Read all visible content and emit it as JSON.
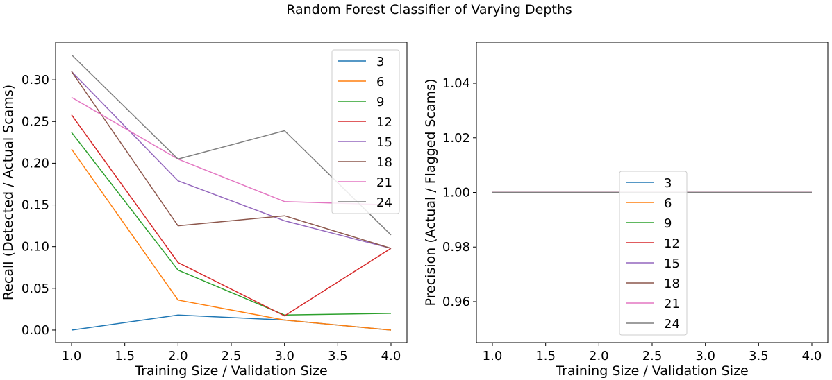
{
  "figure_title": "Random Forest Classifier of Varying Depths",
  "colors": {
    "3": "#1f77b4",
    "6": "#ff7f0e",
    "9": "#2ca02c",
    "12": "#d62728",
    "15": "#9467bd",
    "18": "#8c564b",
    "21": "#e377c2",
    "24": "#7f7f7f"
  },
  "chart_data": [
    {
      "type": "line",
      "title": "",
      "xlabel": "Training Size / Validation Size",
      "ylabel": "Recall (Detected / Actual Scams)",
      "x": [
        1.0,
        2.0,
        3.0,
        4.0
      ],
      "xlim": [
        0.85,
        4.15
      ],
      "ylim": [
        -0.015,
        0.345
      ],
      "xticks": [
        "1.0",
        "1.5",
        "2.0",
        "2.5",
        "3.0",
        "3.5",
        "4.0"
      ],
      "yticks": [
        "0.00",
        "0.05",
        "0.10",
        "0.15",
        "0.20",
        "0.25",
        "0.30"
      ],
      "legend_position": "top-right",
      "series": [
        {
          "name": "3",
          "values": [
            0.0,
            0.018,
            0.012,
            0.0
          ]
        },
        {
          "name": "6",
          "values": [
            0.217,
            0.036,
            0.012,
            0.0
          ]
        },
        {
          "name": "9",
          "values": [
            0.237,
            0.072,
            0.018,
            0.02
          ]
        },
        {
          "name": "12",
          "values": [
            0.258,
            0.081,
            0.017,
            0.098
          ]
        },
        {
          "name": "15",
          "values": [
            0.31,
            0.179,
            0.131,
            0.098
          ]
        },
        {
          "name": "18",
          "values": [
            0.31,
            0.125,
            0.137,
            0.098
          ]
        },
        {
          "name": "21",
          "values": [
            0.279,
            0.205,
            0.154,
            0.15
          ]
        },
        {
          "name": "24",
          "values": [
            0.33,
            0.205,
            0.239,
            0.114
          ]
        }
      ]
    },
    {
      "type": "line",
      "title": "",
      "xlabel": "Training Size / Validation Size",
      "ylabel": "Precision (Actual / Flagged Scams)",
      "x": [
        1.0,
        2.0,
        3.0,
        4.0
      ],
      "xlim": [
        0.85,
        4.15
      ],
      "ylim": [
        0.945,
        1.055
      ],
      "xticks": [
        "1.0",
        "1.5",
        "2.0",
        "2.5",
        "3.0",
        "3.5",
        "4.0"
      ],
      "yticks": [
        "0.96",
        "0.98",
        "1.00",
        "1.02",
        "1.04"
      ],
      "legend_position": "bottom-center",
      "series": [
        {
          "name": "3",
          "values": [
            1.0,
            1.0,
            1.0,
            1.0
          ]
        },
        {
          "name": "6",
          "values": [
            1.0,
            1.0,
            1.0,
            1.0
          ]
        },
        {
          "name": "9",
          "values": [
            1.0,
            1.0,
            1.0,
            1.0
          ]
        },
        {
          "name": "12",
          "values": [
            1.0,
            1.0,
            1.0,
            1.0
          ]
        },
        {
          "name": "15",
          "values": [
            1.0,
            1.0,
            1.0,
            1.0
          ]
        },
        {
          "name": "18",
          "values": [
            1.0,
            1.0,
            1.0,
            1.0
          ]
        },
        {
          "name": "21",
          "values": [
            1.0,
            1.0,
            1.0,
            1.0
          ]
        },
        {
          "name": "24",
          "values": [
            1.0,
            1.0,
            1.0,
            1.0
          ]
        }
      ]
    }
  ]
}
